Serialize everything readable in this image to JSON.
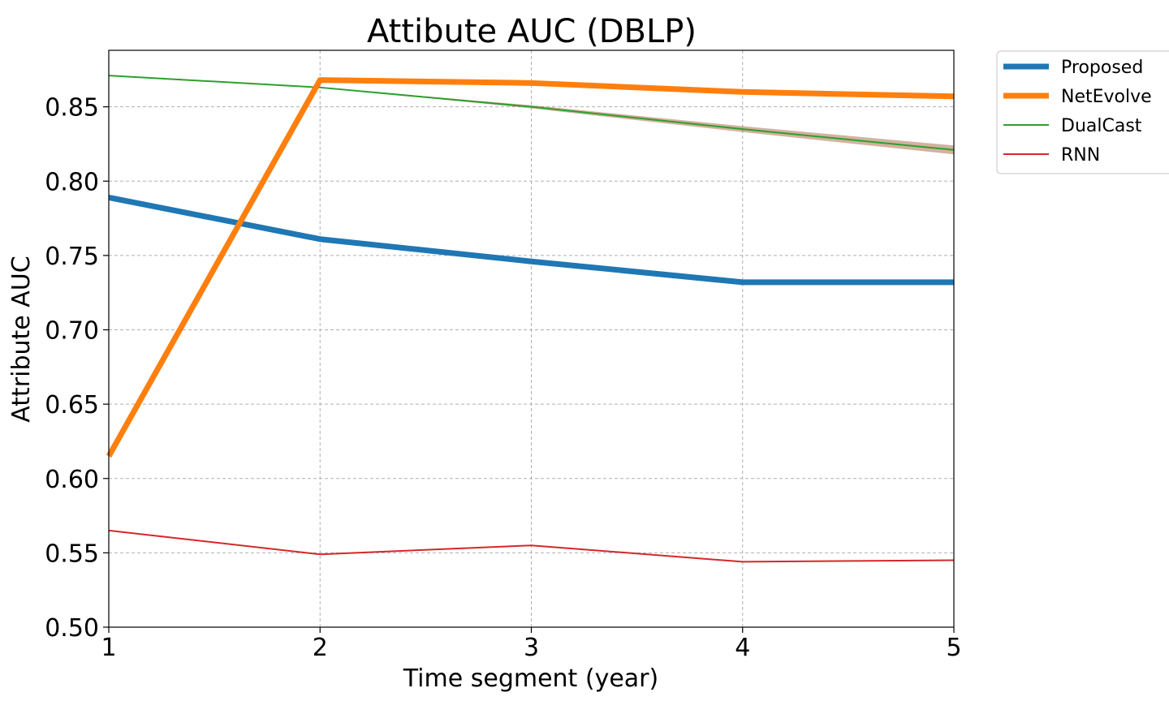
{
  "chart_data": {
    "type": "line",
    "title": "Attibute AUC (DBLP)",
    "xlabel": "Time segment (year)",
    "ylabel": "Attribute AUC",
    "xlim": [
      1,
      5
    ],
    "ylim": [
      0.5,
      0.888
    ],
    "xticks": [
      1,
      2,
      3,
      4,
      5
    ],
    "yticks": [
      0.5,
      0.55,
      0.6,
      0.65,
      0.7,
      0.75,
      0.8,
      0.85
    ],
    "grid": true,
    "legend_position": "outside-top-right",
    "x": [
      1,
      2,
      3,
      4,
      5
    ],
    "series": [
      {
        "name": "Proposed",
        "color": "#1f77b4",
        "style": "thick",
        "values": [
          0.789,
          0.761,
          0.746,
          0.732,
          0.732
        ]
      },
      {
        "name": "NetEvolve",
        "color": "#ff7f0e",
        "style": "thick",
        "values": [
          0.615,
          0.868,
          0.866,
          0.86,
          0.857
        ]
      },
      {
        "name": "DualCast",
        "color": "#2ca02c",
        "style": "thin",
        "values": [
          0.871,
          0.863,
          0.85,
          0.835,
          0.821
        ],
        "band_lower": [
          0.871,
          0.863,
          0.849,
          0.833,
          0.818
        ],
        "band_upper": [
          0.871,
          0.863,
          0.851,
          0.837,
          0.824
        ]
      },
      {
        "name": "RNN",
        "color": "#d62728",
        "style": "thin",
        "values": [
          0.565,
          0.549,
          0.555,
          0.544,
          0.545
        ]
      }
    ]
  }
}
